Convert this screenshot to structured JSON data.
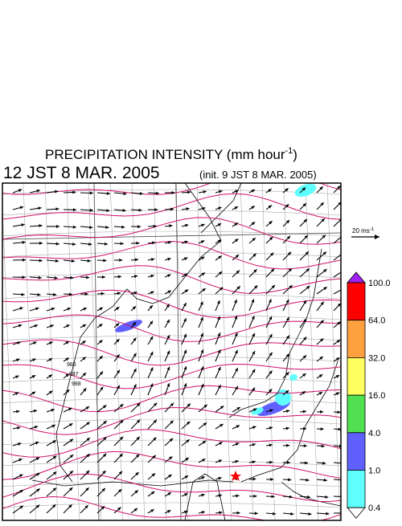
{
  "header": {
    "title": {
      "text": "PRECIPITATION INTENSITY (mm hour",
      "sup": "-1",
      "close": ")"
    },
    "valid_time": "12 JST 8 MAR. 2005",
    "init_time": "(init. 9 JST 8 MAR. 2005)"
  },
  "wind_scale": {
    "text": "20 ms",
    "sup": "-1"
  },
  "legend": {
    "max_color": "#a020f0",
    "min_color": "#ffffff",
    "bands": [
      {
        "label": "100.0",
        "color": "#ff0000"
      },
      {
        "label": "64.0",
        "color": "#ffa040"
      },
      {
        "label": "32.0",
        "color": "#ffff60"
      },
      {
        "label": "16.0",
        "color": "#50e050"
      },
      {
        "label": "4.0",
        "color": "#6060ff"
      },
      {
        "label": "1.0",
        "color": "#60ffff"
      },
      {
        "label": "0.4"
      }
    ]
  },
  "map": {
    "isobar_labels": [
      "986",
      "987",
      "988"
    ]
  }
}
